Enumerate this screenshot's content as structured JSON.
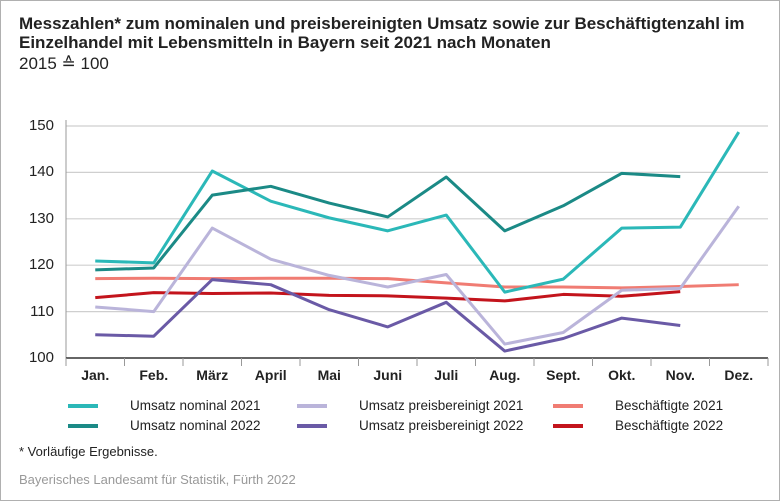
{
  "chart_data": {
    "type": "line",
    "title": "Messzahlen* zum nominalen und preisbereinigten Umsatz sowie zur Beschäftigtenzahl im Einzelhandel mit Lebensmitteln in Bayern seit 2021 nach Monaten",
    "subtitle": "2015 ≙ 100",
    "categories": [
      "Jan.",
      "Feb.",
      "März",
      "April",
      "Mai",
      "Juni",
      "Juli",
      "Aug.",
      "Sept.",
      "Okt.",
      "Nov.",
      "Dez."
    ],
    "ylim": [
      100,
      150
    ],
    "yticks": [
      100,
      110,
      120,
      130,
      140,
      150
    ],
    "grid": true,
    "legend_position": "bottom",
    "series": [
      {
        "name": "Umsatz nominal 2021",
        "color": "#2bb8b8",
        "values": [
          120.9,
          120.5,
          140.3,
          133.8,
          130.2,
          127.4,
          130.8,
          114.2,
          117.0,
          128.0,
          128.2,
          148.7
        ]
      },
      {
        "name": "Umsatz nominal 2022",
        "color": "#1b8a86",
        "values": [
          119.0,
          119.4,
          135.1,
          137.0,
          133.4,
          130.4,
          139.0,
          127.4,
          132.8,
          139.8,
          139.1,
          null
        ]
      },
      {
        "name": "Umsatz preisbereinigt 2021",
        "color": "#bab4da",
        "values": [
          111.0,
          110.0,
          128.0,
          121.3,
          117.8,
          115.3,
          118.0,
          103.0,
          105.5,
          114.6,
          115.0,
          132.7
        ]
      },
      {
        "name": "Umsatz preisbereinigt 2022",
        "color": "#6a5aa6",
        "values": [
          105.0,
          104.7,
          116.9,
          115.8,
          110.4,
          106.7,
          112.0,
          101.5,
          104.2,
          108.6,
          107.0,
          null
        ]
      },
      {
        "name": "Beschäftigte 2021",
        "color": "#f07c73",
        "values": [
          117.1,
          117.2,
          117.1,
          117.2,
          117.2,
          117.1,
          116.2,
          115.3,
          115.3,
          115.1,
          115.4,
          115.8
        ]
      },
      {
        "name": "Beschäftigte 2022",
        "color": "#c3141c",
        "values": [
          113.0,
          114.1,
          113.9,
          114.0,
          113.5,
          113.4,
          112.9,
          112.3,
          113.7,
          113.3,
          114.3,
          null
        ]
      }
    ],
    "footnote": "* Vorläufige Ergebnisse.",
    "source": "Bayerisches Landesamt für Statistik, Fürth 2022"
  }
}
